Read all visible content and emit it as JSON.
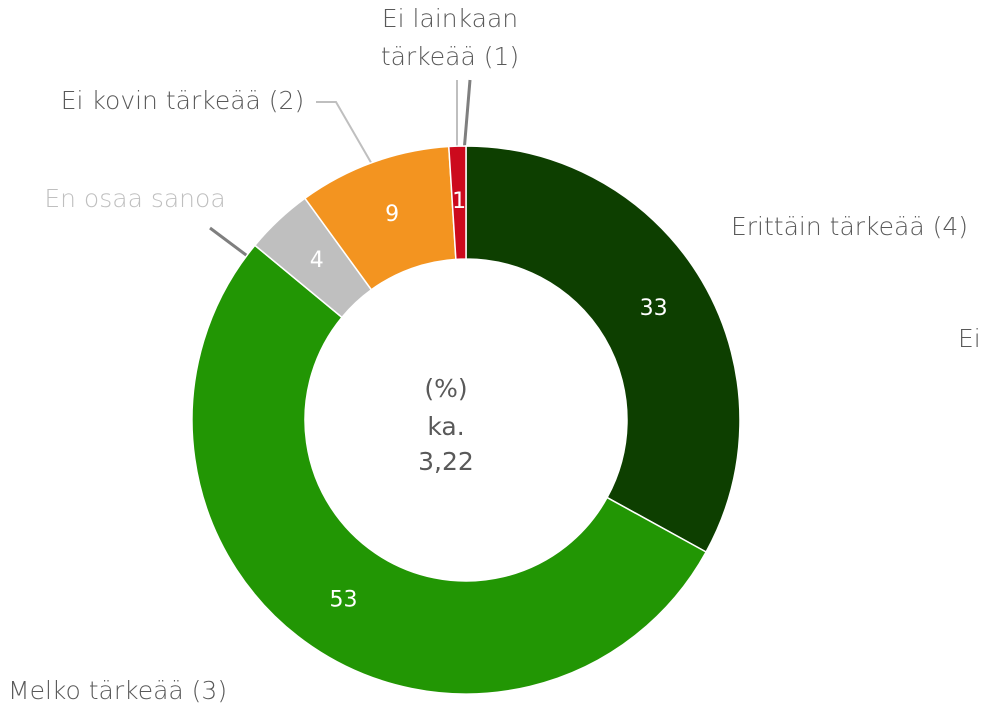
{
  "chart_data": {
    "type": "donut",
    "categories": [
      "Erittäin tärkeää (4)",
      "Melko tärkeää (3)",
      "En osaa sanoa",
      "Ei kovin tärkeää (2)",
      "Ei lainkaan tärkeää (1)"
    ],
    "values": [
      33,
      53,
      4,
      9,
      1
    ],
    "colors": [
      "#0d3f00",
      "#229604",
      "#bfbfbf",
      "#f39420",
      "#cc0a1d"
    ],
    "center_text": [
      "(%)",
      "ka.",
      "3,22"
    ],
    "annotations": [
      "Ei"
    ]
  }
}
